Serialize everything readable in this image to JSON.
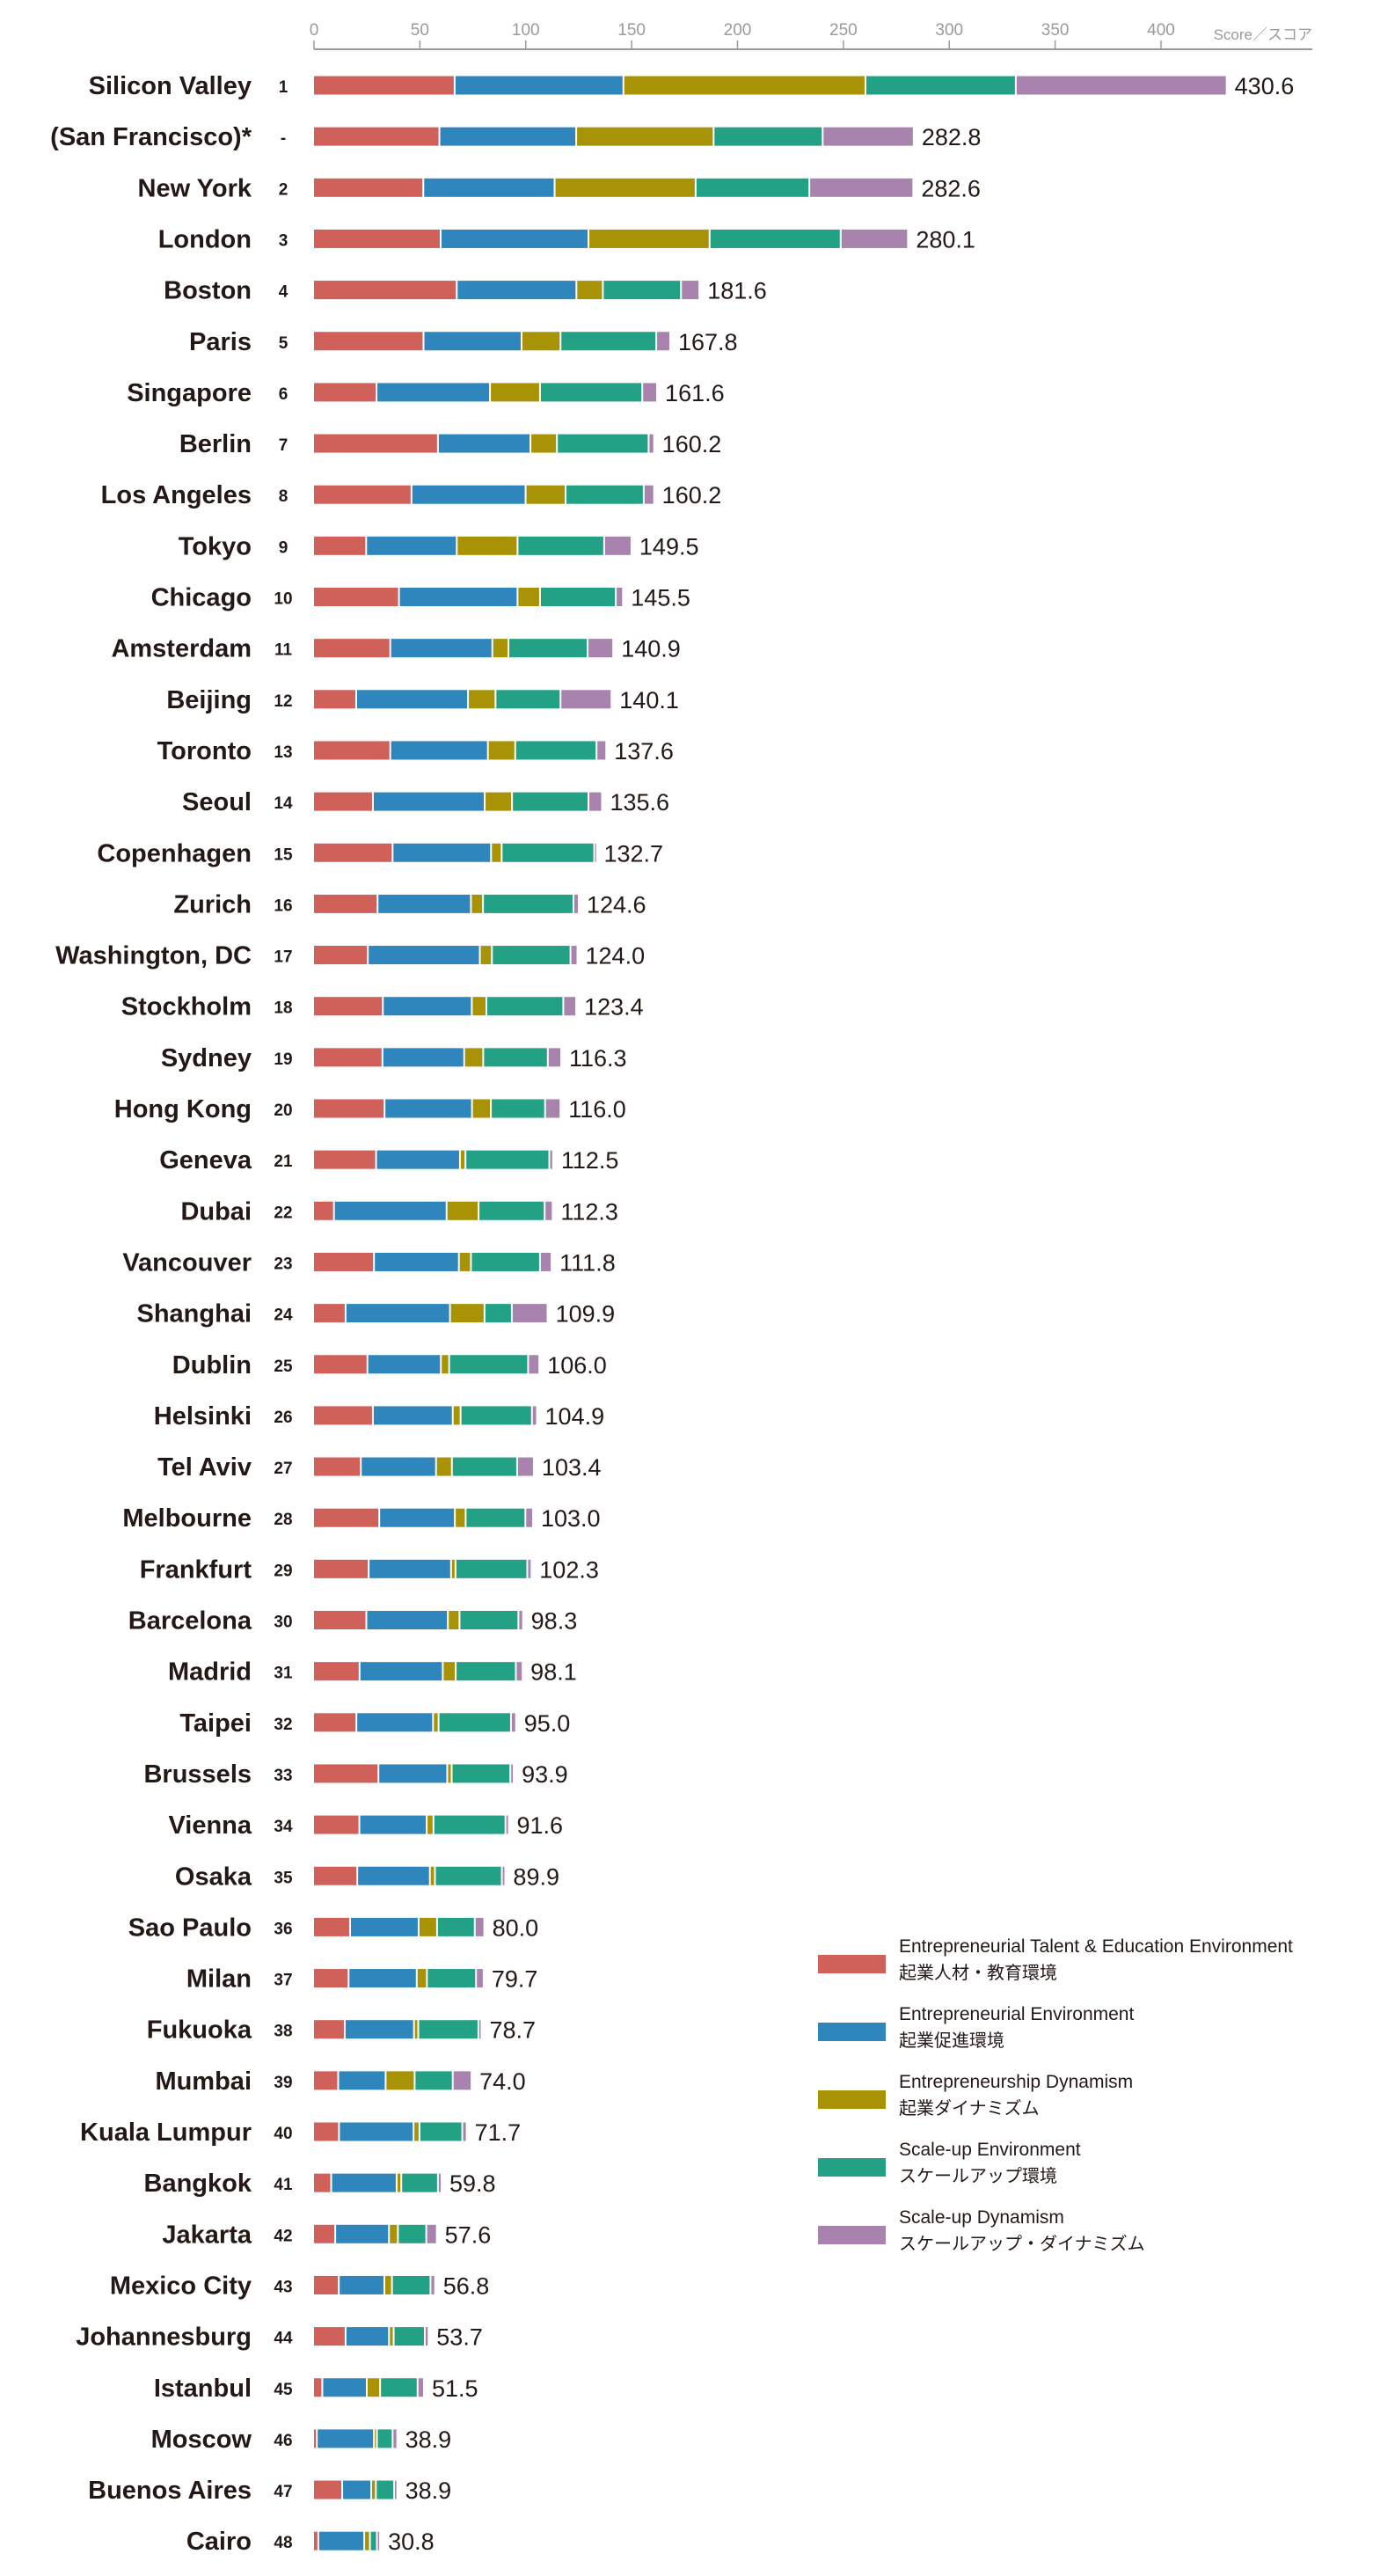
{
  "chart_data": {
    "type": "bar",
    "orientation": "horizontal",
    "stacked": true,
    "title": "",
    "xlabel": "Score／スコア",
    "ylabel": "",
    "xlim": [
      0,
      400
    ],
    "xticks": [
      "0",
      "50",
      "100",
      "150",
      "200",
      "250",
      "300",
      "350",
      "400"
    ],
    "grid": false,
    "legend_position": "bottom-right",
    "series": [
      {
        "name": "Entrepreneurial Talent & Education Environment",
        "name_ja": "起業人材・教育環境",
        "color": "#d0605a"
      },
      {
        "name": "Entrepreneurial Environment",
        "name_ja": "起業促進環境",
        "color": "#2e86bc"
      },
      {
        "name": "Entrepreneurship Dynamism",
        "name_ja": "起業ダイナミズム",
        "color": "#a89306"
      },
      {
        "name": "Scale-up Environment",
        "name_ja": "スケールアップ環境",
        "color": "#22a184"
      },
      {
        "name": "Scale-up Dynamism",
        "name_ja": "スケールアップ・ダイナミズム",
        "color": "#a883ae"
      }
    ],
    "rows": [
      {
        "city": "Silicon Valley",
        "rank": "1",
        "total": "430.6",
        "values": [
          66.0,
          79.7,
          114.3,
          71.0,
          99.6
        ]
      },
      {
        "city": "(San Francisco)*",
        "rank": "-",
        "total": "282.8",
        "values": [
          58.8,
          64.6,
          64.9,
          51.5,
          43.0
        ]
      },
      {
        "city": "New York",
        "rank": "2",
        "total": "282.6",
        "values": [
          51.2,
          62.0,
          66.6,
          53.7,
          49.1
        ]
      },
      {
        "city": "London",
        "rank": "3",
        "total": "280.1",
        "values": [
          59.4,
          69.8,
          57.2,
          61.9,
          31.8
        ]
      },
      {
        "city": "Boston",
        "rank": "4",
        "total": "181.6",
        "values": [
          67.0,
          56.5,
          12.5,
          36.9,
          8.7
        ]
      },
      {
        "city": "Paris",
        "rank": "5",
        "total": "167.8",
        "values": [
          51.3,
          46.3,
          18.4,
          45.2,
          6.6
        ]
      },
      {
        "city": "Singapore",
        "rank": "6",
        "total": "161.6",
        "values": [
          29.1,
          53.6,
          23.6,
          48.3,
          7.0
        ]
      },
      {
        "city": "Berlin",
        "rank": "7",
        "total": "160.2",
        "values": [
          58.1,
          43.7,
          12.5,
          43.3,
          2.6
        ]
      },
      {
        "city": "Los Angeles",
        "rank": "8",
        "total": "160.2",
        "values": [
          45.6,
          53.9,
          18.9,
          36.9,
          4.9
        ]
      },
      {
        "city": "Tokyo",
        "rank": "9",
        "total": "149.5",
        "values": [
          24.2,
          42.8,
          28.7,
          40.9,
          12.9
        ]
      },
      {
        "city": "Chicago",
        "rank": "10",
        "total": "145.5",
        "values": [
          39.7,
          56.0,
          10.6,
          35.8,
          3.4
        ]
      },
      {
        "city": "Amsterdam",
        "rank": "11",
        "total": "140.9",
        "values": [
          35.6,
          48.2,
          7.6,
          37.4,
          12.1
        ]
      },
      {
        "city": "Beijing",
        "rank": "12",
        "total": "140.1",
        "values": [
          19.5,
          52.8,
          13.0,
          30.7,
          24.1
        ]
      },
      {
        "city": "Toronto",
        "rank": "13",
        "total": "137.6",
        "values": [
          35.6,
          46.1,
          12.9,
          38.4,
          4.6
        ]
      },
      {
        "city": "Seoul",
        "rank": "14",
        "total": "135.6",
        "values": [
          27.4,
          52.8,
          12.9,
          36.1,
          6.4
        ]
      },
      {
        "city": "Copenhagen",
        "rank": "15",
        "total": "132.7",
        "values": [
          36.7,
          46.5,
          5.0,
          43.7,
          0.8
        ]
      },
      {
        "city": "Zurich",
        "rank": "16",
        "total": "124.6",
        "values": [
          29.6,
          44.1,
          5.7,
          42.7,
          2.5
        ]
      },
      {
        "city": "Washington, DC",
        "rank": "17",
        "total": "124.0",
        "values": [
          25.0,
          52.9,
          5.7,
          37.1,
          3.3
        ]
      },
      {
        "city": "Stockholm",
        "rank": "18",
        "total": "123.4",
        "values": [
          32.1,
          42.0,
          6.9,
          36.3,
          6.1
        ]
      },
      {
        "city": "Sydney",
        "rank": "19",
        "total": "116.3",
        "values": [
          31.9,
          38.6,
          9.0,
          30.5,
          6.3
        ]
      },
      {
        "city": "Hong Kong",
        "rank": "20",
        "total": "116.0",
        "values": [
          32.9,
          41.3,
          8.9,
          25.6,
          7.3
        ]
      },
      {
        "city": "Geneva",
        "rank": "21",
        "total": "112.5",
        "values": [
          28.9,
          39.6,
          2.6,
          39.6,
          1.8
        ]
      },
      {
        "city": "Dubai",
        "rank": "22",
        "total": "112.3",
        "values": [
          9.0,
          53.2,
          15.1,
          31.2,
          3.8
        ]
      },
      {
        "city": "Vancouver",
        "rank": "23",
        "total": "111.8",
        "values": [
          27.9,
          40.1,
          5.7,
          32.6,
          5.5
        ]
      },
      {
        "city": "Shanghai",
        "rank": "24",
        "total": "109.9",
        "values": [
          14.5,
          49.3,
          16.3,
          12.9,
          16.9
        ]
      },
      {
        "city": "Dublin",
        "rank": "25",
        "total": "106.0",
        "values": [
          24.8,
          34.7,
          3.9,
          37.3,
          5.3
        ]
      },
      {
        "city": "Helsinki",
        "rank": "26",
        "total": "104.9",
        "values": [
          27.4,
          37.7,
          3.7,
          33.7,
          2.4
        ]
      },
      {
        "city": "Tel Aviv",
        "rank": "27",
        "total": "103.4",
        "values": [
          21.7,
          35.5,
          7.5,
          30.8,
          7.9
        ]
      },
      {
        "city": "Melbourne",
        "rank": "28",
        "total": "103.0",
        "values": [
          30.4,
          35.7,
          5.1,
          28.2,
          3.6
        ]
      },
      {
        "city": "Frankfurt",
        "rank": "29",
        "total": "102.3",
        "values": [
          25.4,
          38.9,
          2.1,
          33.9,
          2.0
        ]
      },
      {
        "city": "Barcelona",
        "rank": "30",
        "total": "98.3",
        "values": [
          24.3,
          38.5,
          5.5,
          27.8,
          2.2
        ]
      },
      {
        "city": "Madrid",
        "rank": "31",
        "total": "98.1",
        "values": [
          21.1,
          39.3,
          6.1,
          28.4,
          3.2
        ]
      },
      {
        "city": "Taipei",
        "rank": "32",
        "total": "95.0",
        "values": [
          19.6,
          36.2,
          2.6,
          34.2,
          2.4
        ]
      },
      {
        "city": "Brussels",
        "rank": "33",
        "total": "93.9",
        "values": [
          30.0,
          32.5,
          2.1,
          27.7,
          1.6
        ]
      },
      {
        "city": "Vienna",
        "rank": "34",
        "total": "91.6",
        "values": [
          21.0,
          31.8,
          3.2,
          34.0,
          1.6
        ]
      },
      {
        "city": "Osaka",
        "rank": "35",
        "total": "89.9",
        "values": [
          20.0,
          34.3,
          2.4,
          31.6,
          1.6
        ]
      },
      {
        "city": "Sao Paulo",
        "rank": "36",
        "total": "80.0",
        "values": [
          16.6,
          32.4,
          8.7,
          17.8,
          4.5
        ]
      },
      {
        "city": "Milan",
        "rank": "37",
        "total": "79.7",
        "values": [
          15.9,
          32.2,
          4.8,
          23.2,
          3.6
        ]
      },
      {
        "city": "Fukuoka",
        "rank": "38",
        "total": "78.7",
        "values": [
          14.1,
          32.7,
          2.0,
          28.4,
          1.5
        ]
      },
      {
        "city": "Mumbai",
        "rank": "39",
        "total": "74.0",
        "values": [
          11.0,
          22.4,
          13.7,
          18.0,
          8.9
        ]
      },
      {
        "city": "Kuala Lumpur",
        "rank": "40",
        "total": "71.7",
        "values": [
          11.4,
          35.2,
          2.8,
          20.2,
          2.1
        ]
      },
      {
        "city": "Bangkok",
        "rank": "41",
        "total": "59.8",
        "values": [
          7.7,
          30.9,
          2.2,
          17.3,
          1.7
        ]
      },
      {
        "city": "Jakarta",
        "rank": "42",
        "total": "57.6",
        "values": [
          9.6,
          25.4,
          4.2,
          13.4,
          5.0
        ]
      },
      {
        "city": "Mexico City",
        "rank": "43",
        "total": "56.8",
        "values": [
          11.3,
          21.5,
          3.6,
          18.2,
          2.2
        ]
      },
      {
        "city": "Johannesburg",
        "rank": "44",
        "total": "53.7",
        "values": [
          14.5,
          20.5,
          2.2,
          14.7,
          1.8
        ]
      },
      {
        "city": "Istanbul",
        "rank": "45",
        "total": "51.5",
        "values": [
          3.5,
          21.0,
          6.3,
          17.7,
          3.0
        ]
      },
      {
        "city": "Moscow",
        "rank": "46",
        "total": "38.9",
        "values": [
          0.9,
          27.0,
          1.4,
          7.4,
          2.2
        ]
      },
      {
        "city": "Buenos Aires",
        "rank": "47",
        "total": "38.9",
        "values": [
          12.9,
          13.7,
          2.2,
          8.6,
          1.5
        ]
      },
      {
        "city": "Cairo",
        "rank": "48",
        "total": "30.8",
        "values": [
          1.6,
          21.7,
          2.7,
          3.3,
          1.5
        ]
      }
    ]
  }
}
